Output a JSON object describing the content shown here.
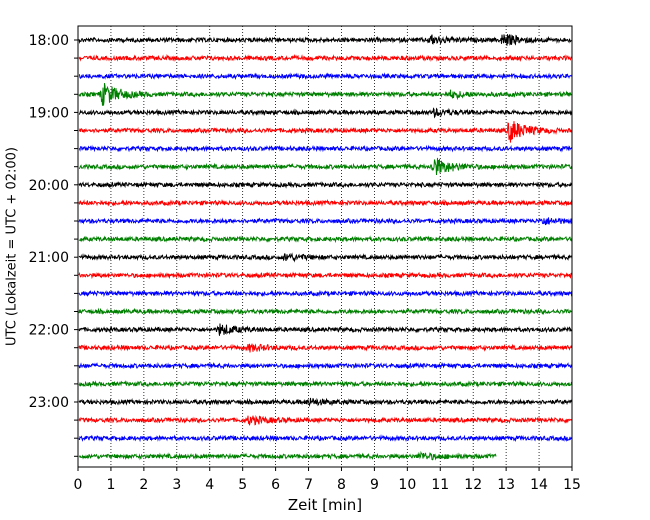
{
  "chart_data": {
    "type": "line",
    "title": "",
    "xlabel": "Zeit  [min]",
    "ylabel": "UTC (Lokalzeit = UTC + 02:00)",
    "xlim": [
      0,
      15
    ],
    "x_ticks": [
      0,
      1,
      2,
      3,
      4,
      5,
      6,
      7,
      8,
      9,
      10,
      11,
      12,
      13,
      14,
      15
    ],
    "y_tick_labels": [
      "18:00",
      "19:00",
      "20:00",
      "21:00",
      "22:00",
      "23:00"
    ],
    "grid": "vertical dotted lines at each minute",
    "trace_interval_min": 15,
    "start_time": "18:00",
    "trace_colors": [
      "#000000",
      "#ff0000",
      "#0000ff",
      "#008000"
    ],
    "traces": [
      {
        "start": "18:00",
        "color": "#000000",
        "end_min": 15,
        "events": [
          {
            "t": 10.7,
            "amp": 4
          },
          {
            "t": 12.9,
            "amp": 6
          }
        ]
      },
      {
        "start": "18:15",
        "color": "#ff0000",
        "end_min": 15,
        "events": []
      },
      {
        "start": "18:30",
        "color": "#0000ff",
        "end_min": 15,
        "events": []
      },
      {
        "start": "18:45",
        "color": "#008000",
        "end_min": 15,
        "events": [
          {
            "t": 0.75,
            "amp": 11
          },
          {
            "t": 11.3,
            "amp": 3
          }
        ]
      },
      {
        "start": "19:00",
        "color": "#000000",
        "end_min": 15,
        "events": [
          {
            "t": 10.8,
            "amp": 3
          }
        ]
      },
      {
        "start": "19:15",
        "color": "#ff0000",
        "end_min": 15,
        "events": [
          {
            "t": 13.1,
            "amp": 11
          }
        ]
      },
      {
        "start": "19:30",
        "color": "#0000ff",
        "end_min": 15,
        "events": []
      },
      {
        "start": "19:45",
        "color": "#008000",
        "end_min": 15,
        "events": [
          {
            "t": 10.8,
            "amp": 9
          }
        ]
      },
      {
        "start": "20:00",
        "color": "#000000",
        "end_min": 15,
        "events": []
      },
      {
        "start": "20:15",
        "color": "#ff0000",
        "end_min": 15,
        "events": []
      },
      {
        "start": "20:30",
        "color": "#0000ff",
        "end_min": 15,
        "events": [
          {
            "t": 14.1,
            "amp": 3
          }
        ]
      },
      {
        "start": "20:45",
        "color": "#008000",
        "end_min": 15,
        "events": []
      },
      {
        "start": "21:00",
        "color": "#000000",
        "end_min": 15,
        "events": [
          {
            "t": 6.3,
            "amp": 3
          }
        ]
      },
      {
        "start": "21:15",
        "color": "#ff0000",
        "end_min": 15,
        "events": []
      },
      {
        "start": "21:30",
        "color": "#0000ff",
        "end_min": 15,
        "events": []
      },
      {
        "start": "21:45",
        "color": "#008000",
        "end_min": 15,
        "events": []
      },
      {
        "start": "22:00",
        "color": "#000000",
        "end_min": 15,
        "events": [
          {
            "t": 4.3,
            "amp": 5
          }
        ]
      },
      {
        "start": "22:15",
        "color": "#ff0000",
        "end_min": 15,
        "events": [
          {
            "t": 5.2,
            "amp": 3
          }
        ]
      },
      {
        "start": "22:30",
        "color": "#0000ff",
        "end_min": 15,
        "events": []
      },
      {
        "start": "22:45",
        "color": "#008000",
        "end_min": 15,
        "events": []
      },
      {
        "start": "23:00",
        "color": "#000000",
        "end_min": 15,
        "events": [
          {
            "t": 7.0,
            "amp": 3
          }
        ]
      },
      {
        "start": "23:15",
        "color": "#ff0000",
        "end_min": 15,
        "events": [
          {
            "t": 5.2,
            "amp": 4
          }
        ]
      },
      {
        "start": "23:30",
        "color": "#0000ff",
        "end_min": 15,
        "events": []
      },
      {
        "start": "23:45",
        "color": "#008000",
        "end_min": 12.7,
        "events": [
          {
            "t": 10.4,
            "amp": 3
          }
        ]
      }
    ]
  }
}
